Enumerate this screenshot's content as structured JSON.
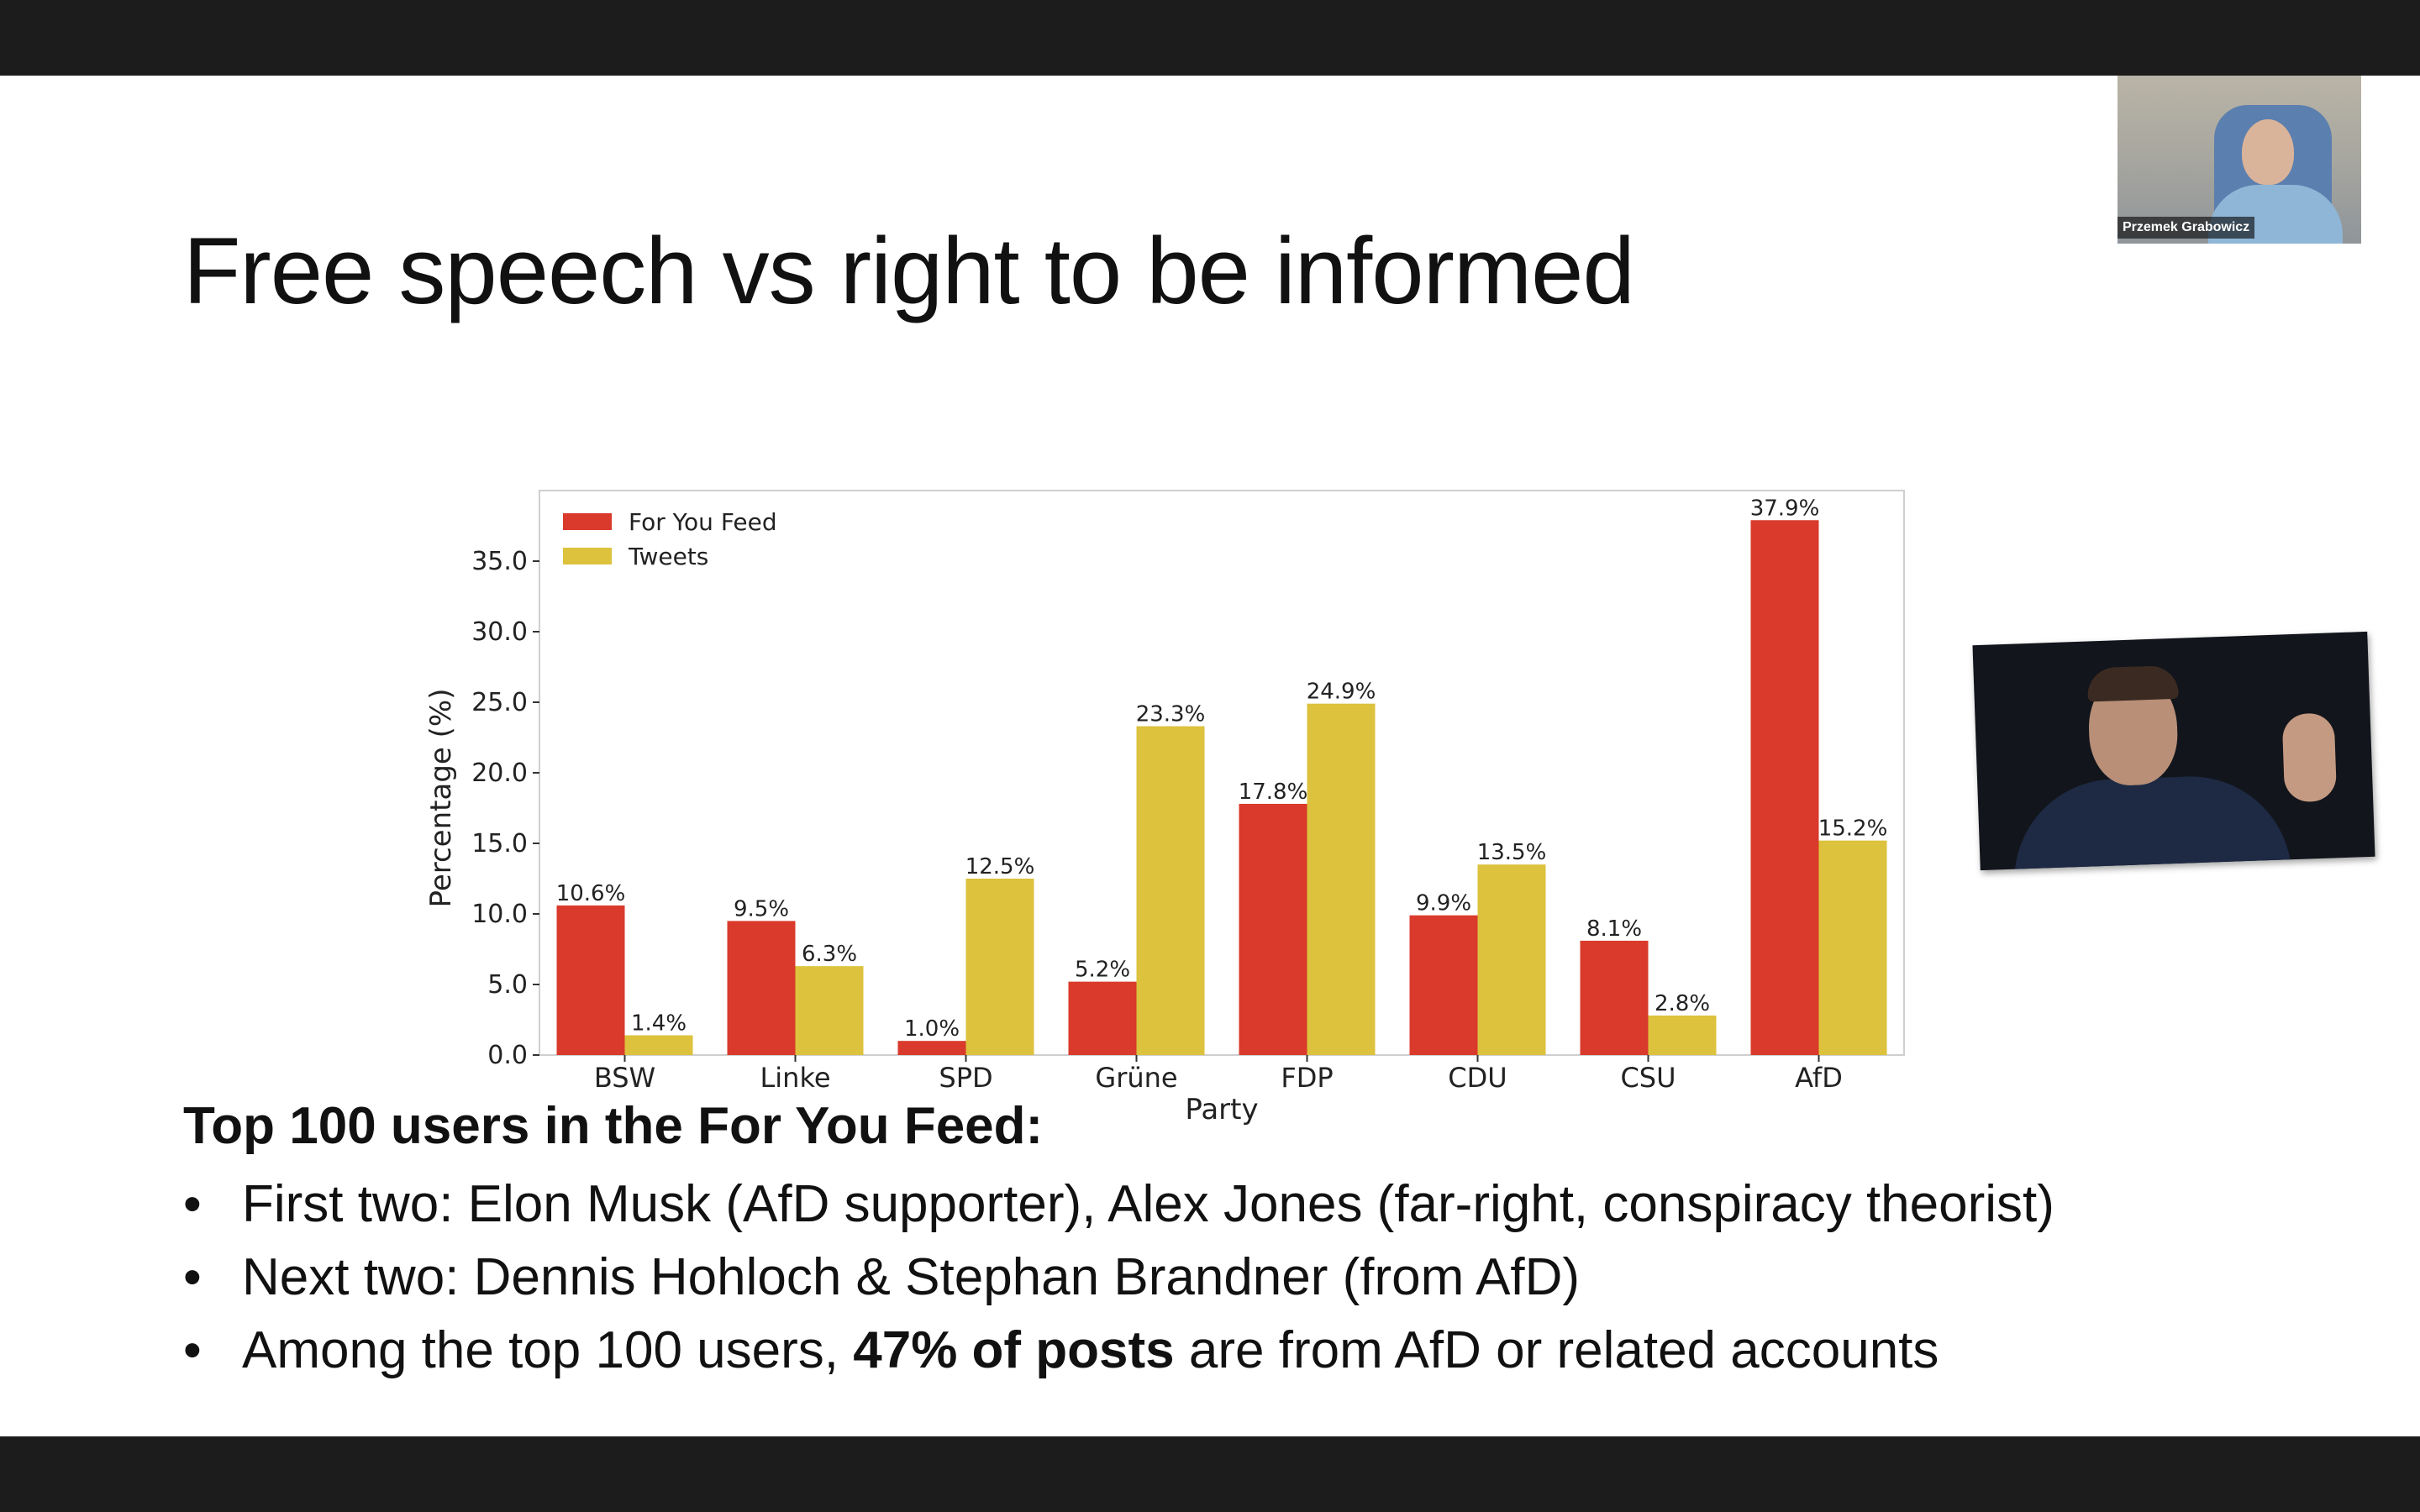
{
  "slide": {
    "title": "Free speech vs right to be informed",
    "heading": "Top 100 users in the For You Feed:",
    "bullets": [
      {
        "bullet": "•",
        "text": "First two: Elon Musk (AfD supporter), Alex Jones (far-right, conspiracy theorist)"
      },
      {
        "bullet": "•",
        "text": "Next two: Dennis Hohloch & Stephan Brandner (from AfD)"
      },
      {
        "bullet": "•",
        "text_before": "Among the top 100 users, ",
        "text_bold": "47% of posts",
        "text_after": " are  from AfD or related accounts"
      }
    ]
  },
  "webcam": {
    "participant_name": "Przemek Grabowicz"
  },
  "chart_data": {
    "type": "bar",
    "categories": [
      "BSW",
      "Linke",
      "SPD",
      "Grüne",
      "FDP",
      "CDU",
      "CSU",
      "AfD"
    ],
    "series": [
      {
        "name": "For You Feed",
        "color": "#d93a2b",
        "values": [
          10.6,
          9.5,
          1.0,
          5.2,
          17.8,
          9.9,
          8.1,
          37.9
        ],
        "labels": [
          "10.6%",
          "9.5%",
          "1.0%",
          "5.2%",
          "17.8%",
          "9.9%",
          "8.1%",
          "37.9%"
        ]
      },
      {
        "name": "Tweets",
        "color": "#dcc23d",
        "values": [
          1.4,
          6.3,
          12.5,
          23.3,
          24.9,
          13.5,
          2.8,
          15.2
        ],
        "labels": [
          "1.4%",
          "6.3%",
          "12.5%",
          "23.3%",
          "24.9%",
          "13.5%",
          "2.8%",
          "15.2%"
        ]
      }
    ],
    "xlabel": "Party",
    "ylabel": "Percentage (%)",
    "ylim": [
      0,
      40
    ],
    "yticks": [
      0,
      5,
      10,
      15,
      20,
      25,
      30,
      35
    ],
    "ytick_labels": [
      "0.0",
      "5.0",
      "10.0",
      "15.0",
      "20.0",
      "25.0",
      "30.0",
      "35.0"
    ],
    "legend": "top-left",
    "grid": false
  }
}
